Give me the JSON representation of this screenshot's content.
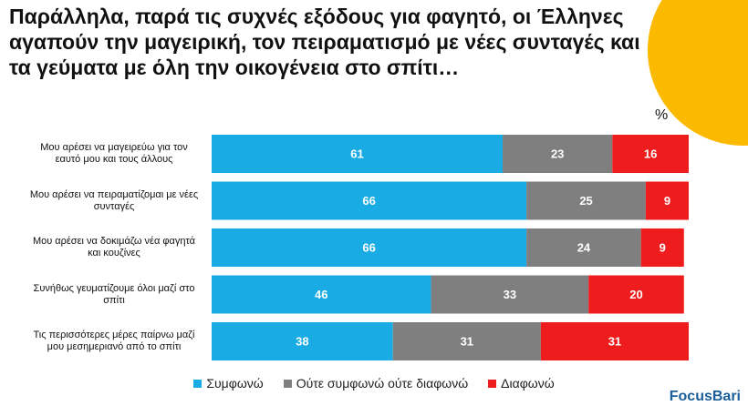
{
  "chart_data": {
    "type": "stacked-bar-horizontal",
    "title": "Παράλληλα, παρά τις συχνές εξόδους για φαγητό, οι Έλληνες αγαπούν την μαγειρική, τον πειραματισμό με νέες συνταγές και τα γεύματα με όλη την οικογένεια στο σπίτι…",
    "unit_label": "%",
    "categories": [
      "Μου αρέσει να μαγειρεύω για τον εαυτό μου και τους άλλους",
      "Μου αρέσει να πειραματίζομαι με νέες συνταγές",
      "Μου αρέσει να δοκιμάζω νέα φαγητά και κουζίνες",
      "Συνήθως γευματίζουμε όλοι μαζί στο σπίτι",
      "Τις περισσότερες μέρες παίρνω μαζί μου μεσημεριανό από το σπίτι"
    ],
    "series": [
      {
        "name": "Συμφωνώ",
        "color": "#19abe3",
        "values": [
          61,
          66,
          66,
          46,
          38
        ]
      },
      {
        "name": "Ούτε συμφωνώ ούτε διαφωνώ",
        "color": "#7f7f7f",
        "values": [
          23,
          25,
          24,
          33,
          31
        ]
      },
      {
        "name": "Διαφωνώ",
        "color": "#ee1c1c",
        "values": [
          16,
          9,
          9,
          20,
          31
        ]
      }
    ],
    "xlim": [
      0,
      100
    ],
    "legend": "bottom",
    "logo": "FocusBari"
  }
}
